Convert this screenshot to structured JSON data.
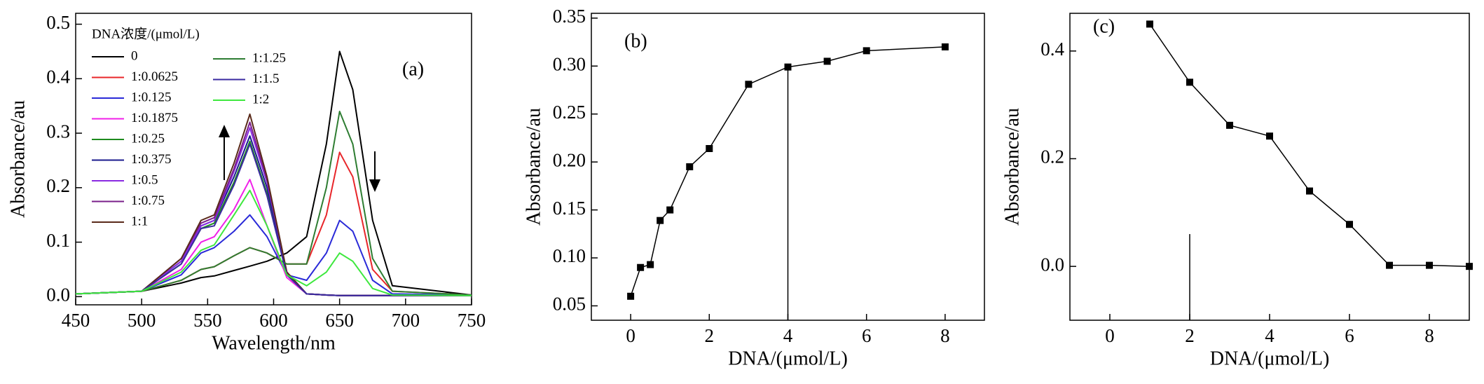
{
  "chart_data": [
    {
      "type": "line",
      "annotation": "(a)",
      "x_label": "Wavelength/nm",
      "y_label": "Absorbance/au",
      "legend_title": "DNA浓度/(μmol/L)",
      "xlim": [
        450,
        750
      ],
      "ylim": [
        -0.015,
        0.52
      ],
      "xticks": [
        450,
        500,
        550,
        600,
        650,
        700,
        750
      ],
      "yticks": [
        {
          "value": 0,
          "label": "0.0"
        },
        0.1,
        0.2,
        0.3,
        0.4,
        0.5
      ],
      "x": [
        450,
        500,
        530,
        545,
        555,
        570,
        582,
        595,
        610,
        625,
        640,
        650,
        660,
        675,
        690,
        750
      ],
      "series": [
        {
          "name": "0",
          "color": "#000000",
          "values": [
            0.005,
            0.01,
            0.025,
            0.035,
            0.038,
            0.048,
            0.056,
            0.065,
            0.08,
            0.11,
            0.28,
            0.45,
            0.38,
            0.14,
            0.02,
            0.003
          ]
        },
        {
          "name": "1:0.0625",
          "color": "#e8262a",
          "values": [
            0.005,
            0.01,
            0.03,
            0.05,
            0.055,
            0.075,
            0.09,
            0.08,
            0.06,
            0.06,
            0.15,
            0.265,
            0.22,
            0.05,
            0.01,
            0.003
          ]
        },
        {
          "name": "1:0.125",
          "color": "#2a2ad8",
          "values": [
            0.005,
            0.01,
            0.04,
            0.08,
            0.09,
            0.12,
            0.15,
            0.11,
            0.04,
            0.03,
            0.08,
            0.14,
            0.12,
            0.03,
            0.005,
            0.003
          ]
        },
        {
          "name": "1:0.1875",
          "color": "#f020e8",
          "values": [
            0.005,
            0.01,
            0.05,
            0.1,
            0.11,
            0.16,
            0.215,
            0.13,
            0.035,
            0.005,
            0.003,
            0.002,
            0.002,
            0.002,
            0.002,
            0.002
          ]
        },
        {
          "name": "1:0.25",
          "color": "#1e8a1e",
          "values": [
            0.005,
            0.01,
            0.06,
            0.125,
            0.135,
            0.21,
            0.285,
            0.19,
            0.04,
            0.005,
            0.003,
            0.002,
            0.002,
            0.002,
            0.002,
            0.002
          ]
        },
        {
          "name": "1:0.375",
          "color": "#1a1a8c",
          "values": [
            0.005,
            0.01,
            0.065,
            0.13,
            0.14,
            0.22,
            0.295,
            0.2,
            0.045,
            0.005,
            0.003,
            0.002,
            0.002,
            0.002,
            0.002,
            0.002
          ]
        },
        {
          "name": "1:0.5",
          "color": "#8a2be2",
          "values": [
            0.005,
            0.01,
            0.065,
            0.13,
            0.14,
            0.23,
            0.31,
            0.21,
            0.045,
            0.005,
            0.003,
            0.002,
            0.002,
            0.002,
            0.002,
            0.002
          ]
        },
        {
          "name": "1:0.75",
          "color": "#7a1f8a",
          "values": [
            0.005,
            0.01,
            0.07,
            0.135,
            0.145,
            0.235,
            0.32,
            0.215,
            0.045,
            0.005,
            0.003,
            0.002,
            0.002,
            0.002,
            0.002,
            0.002
          ]
        },
        {
          "name": "1:1",
          "color": "#5a2a1a",
          "values": [
            0.005,
            0.01,
            0.07,
            0.14,
            0.15,
            0.245,
            0.335,
            0.22,
            0.045,
            0.005,
            0.003,
            0.002,
            0.002,
            0.002,
            0.002,
            0.002
          ]
        },
        {
          "name": "1:1.25",
          "color": "#2e7d32",
          "values": [
            0.005,
            0.01,
            0.03,
            0.05,
            0.055,
            0.075,
            0.09,
            0.08,
            0.06,
            0.06,
            0.2,
            0.34,
            0.28,
            0.07,
            0.01,
            0.003
          ]
        },
        {
          "name": "1:1.5",
          "color": "#3a2aa0",
          "values": [
            0.005,
            0.01,
            0.06,
            0.125,
            0.13,
            0.205,
            0.28,
            0.185,
            0.04,
            0.005,
            0.003,
            0.002,
            0.002,
            0.002,
            0.002,
            0.002
          ]
        },
        {
          "name": "1:2",
          "color": "#3ee83e",
          "values": [
            0.005,
            0.01,
            0.045,
            0.085,
            0.095,
            0.15,
            0.195,
            0.13,
            0.04,
            0.02,
            0.045,
            0.08,
            0.065,
            0.015,
            0.003,
            0.002
          ]
        }
      ]
    },
    {
      "type": "scatter-line",
      "annotation": "(b)",
      "x_label": "DNA/(μmol/L)",
      "y_label": "Absorbance/au",
      "color": "#000000",
      "xlim": [
        -1,
        9
      ],
      "ylim": [
        0.035,
        0.355
      ],
      "xticks": [
        0,
        2,
        4,
        6,
        8
      ],
      "yticks": [
        0.05,
        {
          "value": 0.1,
          "label": "0.10"
        },
        0.15,
        {
          "value": 0.2,
          "label": "0.20"
        },
        0.25,
        {
          "value": 0.3,
          "label": "0.30"
        },
        0.35
      ],
      "x": [
        0,
        0.25,
        0.5,
        0.75,
        1,
        1.5,
        2,
        3,
        4,
        5,
        6,
        8
      ],
      "values": [
        0.06,
        0.09,
        0.093,
        0.139,
        0.15,
        0.195,
        0.214,
        0.281,
        0.299,
        0.305,
        0.316,
        0.32
      ],
      "vline": [
        4,
        0.299
      ]
    },
    {
      "type": "scatter-line",
      "annotation": "(c)",
      "x_label": "DNA/(μmol/L)",
      "y_label": "Absorbance/au",
      "color": "#000000",
      "xlim": [
        -1,
        9
      ],
      "ylim": [
        -0.1,
        0.47
      ],
      "xticks": [
        0,
        2,
        4,
        6,
        8
      ],
      "yticks": [
        {
          "value": 0,
          "label": "0.0"
        },
        0.2,
        0.4
      ],
      "x": [
        1,
        2,
        3,
        4,
        5,
        6,
        7,
        8,
        9
      ],
      "values": [
        0.45,
        0.342,
        0.262,
        0.242,
        0.14,
        0.078,
        0.002,
        0.002,
        0.0
      ],
      "vline": [
        2,
        0.06
      ]
    }
  ]
}
